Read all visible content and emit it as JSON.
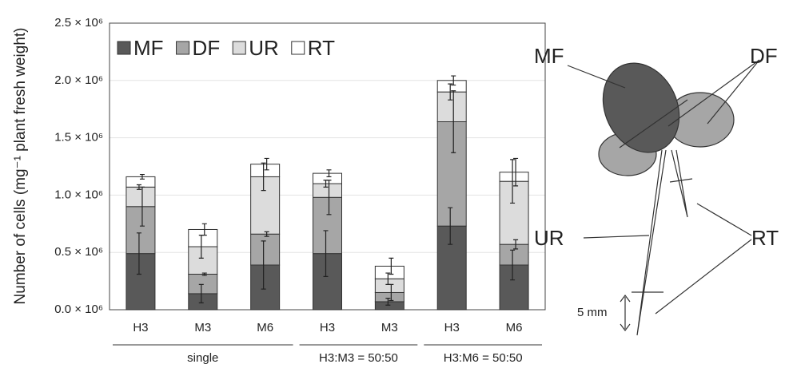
{
  "chart_data": {
    "type": "stacked-bar",
    "ylabel": "Number of cells (mg⁻¹ plant fresh weight)",
    "groups": [
      {
        "label": "single",
        "categories": [
          "H3",
          "M3",
          "M6"
        ]
      },
      {
        "label": "H3:M3 = 50:50",
        "categories": [
          "H3",
          "M3"
        ]
      },
      {
        "label": "H3:M6 = 50:50",
        "categories": [
          "H3",
          "M6"
        ]
      }
    ],
    "series": [
      {
        "name": "MF",
        "color": "#595959",
        "values": [
          490000,
          140000,
          390000,
          490000,
          70000,
          730000,
          390000
        ],
        "errors": [
          180000,
          80000,
          210000,
          200000,
          30000,
          160000,
          130000
        ]
      },
      {
        "name": "DF",
        "color": "#a6a6a6",
        "values": [
          410000,
          170000,
          270000,
          490000,
          80000,
          910000,
          180000
        ],
        "errors": [
          170000,
          10000,
          20000,
          150000,
          70000,
          270000,
          40000
        ]
      },
      {
        "name": "UR",
        "color": "#dcdcdc",
        "values": [
          170000,
          240000,
          500000,
          120000,
          120000,
          260000,
          550000
        ],
        "errors": [
          20000,
          100000,
          120000,
          30000,
          50000,
          70000,
          190000
        ]
      },
      {
        "name": "RT",
        "color": "#ffffff",
        "values": [
          90000,
          150000,
          110000,
          90000,
          110000,
          100000,
          80000
        ],
        "errors": [
          20000,
          50000,
          50000,
          30000,
          70000,
          40000,
          120000
        ]
      }
    ],
    "ylim": [
      0,
      2500000
    ],
    "yticks": [
      {
        "value": 0,
        "label": "0.0 × 10⁶"
      },
      {
        "value": 500000,
        "label": "0.5 × 10⁶"
      },
      {
        "value": 1000000,
        "label": "1.0 × 10⁶"
      },
      {
        "value": 1500000,
        "label": "1.5 × 10⁶"
      },
      {
        "value": 2000000,
        "label": "2.0 × 10⁶"
      },
      {
        "value": 2500000,
        "label": "2.5 × 10⁶"
      }
    ],
    "grid": true,
    "legend": "top-left"
  },
  "diagram": {
    "labels": {
      "mf": "MF",
      "df": "DF",
      "ur": "UR",
      "rt": "RT"
    },
    "scale": "5 mm"
  }
}
